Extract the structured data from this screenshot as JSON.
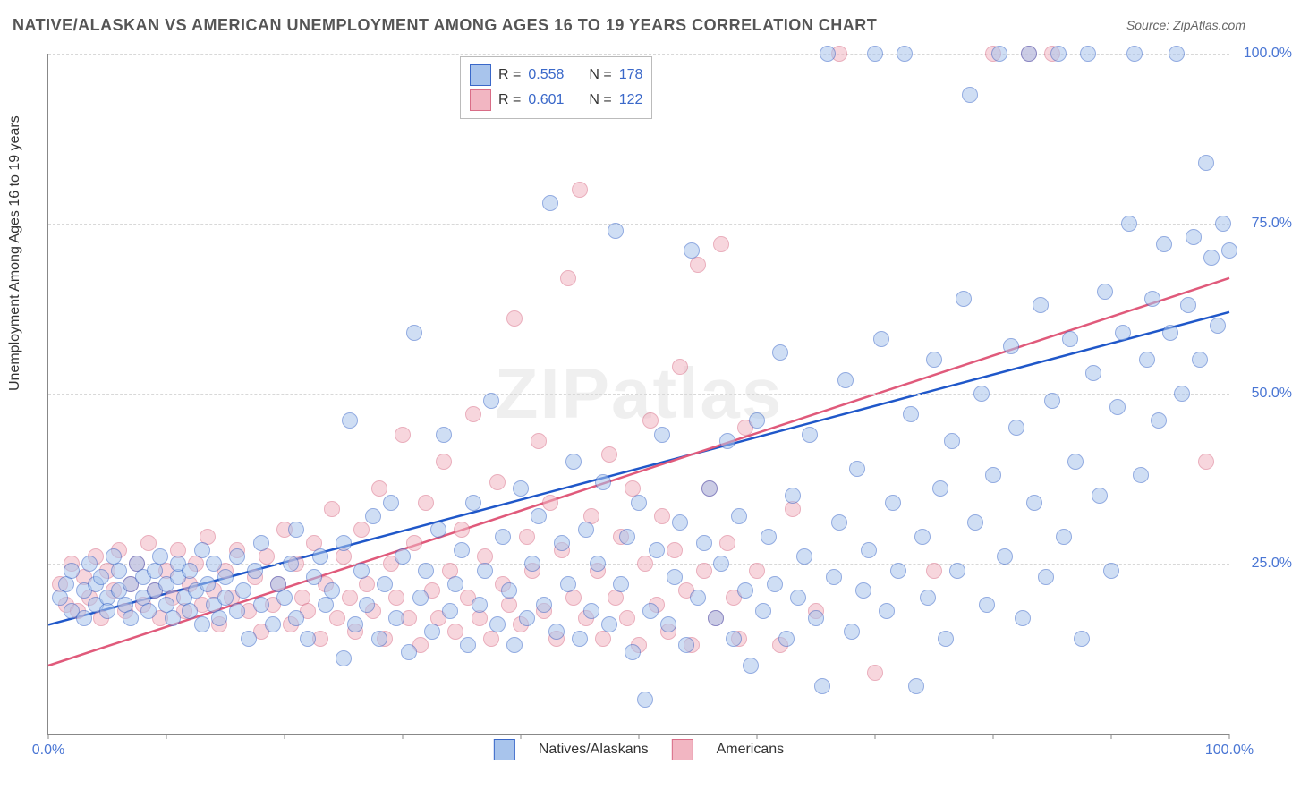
{
  "title": "NATIVE/ALASKAN VS AMERICAN UNEMPLOYMENT AMONG AGES 16 TO 19 YEARS CORRELATION CHART",
  "source": "Source: ZipAtlas.com",
  "watermark": "ZIPatlas",
  "ylabel": "Unemployment Among Ages 16 to 19 years",
  "chart": {
    "type": "scatter",
    "xlim": [
      0,
      100
    ],
    "ylim": [
      0,
      100
    ],
    "yticks": [
      25,
      50,
      75,
      100
    ],
    "xtick_marks": [
      0,
      10,
      20,
      30,
      40,
      50,
      60,
      70,
      80,
      90,
      100
    ],
    "xtick_labels": {
      "0": "0.0%",
      "100": "100.0%"
    },
    "ytick_labels": {
      "25": "25.0%",
      "50": "50.0%",
      "75": "75.0%",
      "100": "100.0%"
    },
    "grid_color": "#d8d8d8",
    "background_color": "#ffffff",
    "series": [
      {
        "key": "natives",
        "label": "Natives/Alaskans",
        "color_fill": "#a8c4ec",
        "color_stroke": "#3a68c9",
        "marker_radius": 8,
        "opacity": 0.55,
        "legend_r": "R = ",
        "legend_r_val": "0.558",
        "legend_n": "N = ",
        "legend_n_val": "178",
        "trend": {
          "x1": 0,
          "y1": 16,
          "x2": 100,
          "y2": 62,
          "color": "#1f57c9",
          "width": 2.5
        }
      },
      {
        "key": "americans",
        "label": "Americans",
        "color_fill": "#f2b6c2",
        "color_stroke": "#d96d87",
        "marker_radius": 8,
        "opacity": 0.55,
        "legend_r": "R = ",
        "legend_r_val": "0.601",
        "legend_n": "N = ",
        "legend_n_val": "122",
        "trend": {
          "x1": 0,
          "y1": 10,
          "x2": 100,
          "y2": 67,
          "color": "#e05a7b",
          "width": 2.5
        }
      }
    ],
    "points_blue": [
      [
        1,
        20
      ],
      [
        1.5,
        22
      ],
      [
        2,
        18
      ],
      [
        2,
        24
      ],
      [
        3,
        21
      ],
      [
        3,
        17
      ],
      [
        3.5,
        25
      ],
      [
        4,
        19
      ],
      [
        4,
        22
      ],
      [
        4.5,
        23
      ],
      [
        5,
        20
      ],
      [
        5,
        18
      ],
      [
        5.5,
        26
      ],
      [
        6,
        21
      ],
      [
        6,
        24
      ],
      [
        6.5,
        19
      ],
      [
        7,
        22
      ],
      [
        7,
        17
      ],
      [
        7.5,
        25
      ],
      [
        8,
        20
      ],
      [
        8,
        23
      ],
      [
        8.5,
        18
      ],
      [
        9,
        24
      ],
      [
        9,
        21
      ],
      [
        9.5,
        26
      ],
      [
        10,
        19
      ],
      [
        10,
        22
      ],
      [
        10.5,
        17
      ],
      [
        11,
        23
      ],
      [
        11,
        25
      ],
      [
        11.5,
        20
      ],
      [
        12,
        18
      ],
      [
        12,
        24
      ],
      [
        12.5,
        21
      ],
      [
        13,
        16
      ],
      [
        13,
        27
      ],
      [
        13.5,
        22
      ],
      [
        14,
        19
      ],
      [
        14,
        25
      ],
      [
        14.5,
        17
      ],
      [
        15,
        23
      ],
      [
        15,
        20
      ],
      [
        16,
        18
      ],
      [
        16,
        26
      ],
      [
        16.5,
        21
      ],
      [
        17,
        14
      ],
      [
        17.5,
        24
      ],
      [
        18,
        19
      ],
      [
        18,
        28
      ],
      [
        19,
        16
      ],
      [
        19.5,
        22
      ],
      [
        20,
        20
      ],
      [
        20.5,
        25
      ],
      [
        21,
        17
      ],
      [
        21,
        30
      ],
      [
        22,
        14
      ],
      [
        22.5,
        23
      ],
      [
        23,
        26
      ],
      [
        23.5,
        19
      ],
      [
        24,
        21
      ],
      [
        25,
        11
      ],
      [
        25,
        28
      ],
      [
        25.5,
        46
      ],
      [
        26,
        16
      ],
      [
        26.5,
        24
      ],
      [
        27,
        19
      ],
      [
        27.5,
        32
      ],
      [
        28,
        14
      ],
      [
        28.5,
        22
      ],
      [
        29,
        34
      ],
      [
        29.5,
        17
      ],
      [
        30,
        26
      ],
      [
        30.5,
        12
      ],
      [
        31,
        59
      ],
      [
        31.5,
        20
      ],
      [
        32,
        24
      ],
      [
        32.5,
        15
      ],
      [
        33,
        30
      ],
      [
        33.5,
        44
      ],
      [
        34,
        18
      ],
      [
        34.5,
        22
      ],
      [
        35,
        27
      ],
      [
        35.5,
        13
      ],
      [
        36,
        34
      ],
      [
        36.5,
        19
      ],
      [
        37,
        24
      ],
      [
        37.5,
        49
      ],
      [
        38,
        16
      ],
      [
        38.5,
        29
      ],
      [
        39,
        21
      ],
      [
        39.5,
        13
      ],
      [
        40,
        36
      ],
      [
        40.5,
        17
      ],
      [
        41,
        25
      ],
      [
        41.5,
        32
      ],
      [
        42,
        19
      ],
      [
        42.5,
        78
      ],
      [
        43,
        15
      ],
      [
        43.5,
        28
      ],
      [
        44,
        22
      ],
      [
        44.5,
        40
      ],
      [
        45,
        14
      ],
      [
        45.5,
        30
      ],
      [
        46,
        18
      ],
      [
        46.5,
        25
      ],
      [
        47,
        37
      ],
      [
        47.5,
        16
      ],
      [
        48,
        74
      ],
      [
        48.5,
        22
      ],
      [
        49,
        29
      ],
      [
        49.5,
        12
      ],
      [
        50,
        34
      ],
      [
        50.5,
        5
      ],
      [
        51,
        18
      ],
      [
        51.5,
        27
      ],
      [
        52,
        44
      ],
      [
        52.5,
        16
      ],
      [
        53,
        23
      ],
      [
        53.5,
        31
      ],
      [
        54,
        13
      ],
      [
        54.5,
        71
      ],
      [
        55,
        20
      ],
      [
        55.5,
        28
      ],
      [
        56,
        36
      ],
      [
        56.5,
        17
      ],
      [
        57,
        25
      ],
      [
        57.5,
        43
      ],
      [
        58,
        14
      ],
      [
        58.5,
        32
      ],
      [
        59,
        21
      ],
      [
        59.5,
        10
      ],
      [
        60,
        46
      ],
      [
        60.5,
        18
      ],
      [
        61,
        29
      ],
      [
        61.5,
        22
      ],
      [
        62,
        56
      ],
      [
        62.5,
        14
      ],
      [
        63,
        35
      ],
      [
        63.5,
        20
      ],
      [
        64,
        26
      ],
      [
        64.5,
        44
      ],
      [
        65,
        17
      ],
      [
        65.5,
        7
      ],
      [
        66,
        100
      ],
      [
        66.5,
        23
      ],
      [
        67,
        31
      ],
      [
        67.5,
        52
      ],
      [
        68,
        15
      ],
      [
        68.5,
        39
      ],
      [
        69,
        21
      ],
      [
        69.5,
        27
      ],
      [
        70,
        100
      ],
      [
        70.5,
        58
      ],
      [
        71,
        18
      ],
      [
        71.5,
        34
      ],
      [
        72,
        24
      ],
      [
        72.5,
        100
      ],
      [
        73,
        47
      ],
      [
        73.5,
        7
      ],
      [
        74,
        29
      ],
      [
        74.5,
        20
      ],
      [
        75,
        55
      ],
      [
        75.5,
        36
      ],
      [
        76,
        14
      ],
      [
        76.5,
        43
      ],
      [
        77,
        24
      ],
      [
        77.5,
        64
      ],
      [
        78,
        94
      ],
      [
        78.5,
        31
      ],
      [
        79,
        50
      ],
      [
        79.5,
        19
      ],
      [
        80,
        38
      ],
      [
        80.5,
        100
      ],
      [
        81,
        26
      ],
      [
        81.5,
        57
      ],
      [
        82,
        45
      ],
      [
        82.5,
        17
      ],
      [
        83,
        100
      ],
      [
        83.5,
        34
      ],
      [
        84,
        63
      ],
      [
        84.5,
        23
      ],
      [
        85,
        49
      ],
      [
        85.5,
        100
      ],
      [
        86,
        29
      ],
      [
        86.5,
        58
      ],
      [
        87,
        40
      ],
      [
        87.5,
        14
      ],
      [
        88,
        100
      ],
      [
        88.5,
        53
      ],
      [
        89,
        35
      ],
      [
        89.5,
        65
      ],
      [
        90,
        24
      ],
      [
        90.5,
        48
      ],
      [
        91,
        59
      ],
      [
        91.5,
        75
      ],
      [
        92,
        100
      ],
      [
        92.5,
        38
      ],
      [
        93,
        55
      ],
      [
        93.5,
        64
      ],
      [
        94,
        46
      ],
      [
        94.5,
        72
      ],
      [
        95,
        59
      ],
      [
        95.5,
        100
      ],
      [
        96,
        50
      ],
      [
        96.5,
        63
      ],
      [
        97,
        73
      ],
      [
        97.5,
        55
      ],
      [
        98,
        84
      ],
      [
        98.5,
        70
      ],
      [
        99,
        60
      ],
      [
        99.5,
        75
      ],
      [
        100,
        71
      ]
    ],
    "points_pink": [
      [
        1,
        22
      ],
      [
        1.5,
        19
      ],
      [
        2,
        25
      ],
      [
        2.5,
        18
      ],
      [
        3,
        23
      ],
      [
        3.5,
        20
      ],
      [
        4,
        26
      ],
      [
        4.5,
        17
      ],
      [
        5,
        24
      ],
      [
        5.5,
        21
      ],
      [
        6,
        27
      ],
      [
        6.5,
        18
      ],
      [
        7,
        22
      ],
      [
        7.5,
        25
      ],
      [
        8,
        19
      ],
      [
        8.5,
        28
      ],
      [
        9,
        21
      ],
      [
        9.5,
        17
      ],
      [
        10,
        24
      ],
      [
        10.5,
        20
      ],
      [
        11,
        27
      ],
      [
        11.5,
        18
      ],
      [
        12,
        22
      ],
      [
        12.5,
        25
      ],
      [
        13,
        19
      ],
      [
        13.5,
        29
      ],
      [
        14,
        21
      ],
      [
        14.5,
        16
      ],
      [
        15,
        24
      ],
      [
        15.5,
        20
      ],
      [
        16,
        27
      ],
      [
        17,
        18
      ],
      [
        17.5,
        23
      ],
      [
        18,
        15
      ],
      [
        18.5,
        26
      ],
      [
        19,
        19
      ],
      [
        19.5,
        22
      ],
      [
        20,
        30
      ],
      [
        20.5,
        16
      ],
      [
        21,
        25
      ],
      [
        21.5,
        20
      ],
      [
        22,
        18
      ],
      [
        22.5,
        28
      ],
      [
        23,
        14
      ],
      [
        23.5,
        22
      ],
      [
        24,
        33
      ],
      [
        24.5,
        17
      ],
      [
        25,
        26
      ],
      [
        25.5,
        20
      ],
      [
        26,
        15
      ],
      [
        26.5,
        30
      ],
      [
        27,
        22
      ],
      [
        27.5,
        18
      ],
      [
        28,
        36
      ],
      [
        28.5,
        14
      ],
      [
        29,
        25
      ],
      [
        29.5,
        20
      ],
      [
        30,
        44
      ],
      [
        30.5,
        17
      ],
      [
        31,
        28
      ],
      [
        31.5,
        13
      ],
      [
        32,
        34
      ],
      [
        32.5,
        21
      ],
      [
        33,
        17
      ],
      [
        33.5,
        40
      ],
      [
        34,
        24
      ],
      [
        34.5,
        15
      ],
      [
        35,
        30
      ],
      [
        35.5,
        20
      ],
      [
        36,
        47
      ],
      [
        36.5,
        17
      ],
      [
        37,
        26
      ],
      [
        37.5,
        14
      ],
      [
        38,
        37
      ],
      [
        38.5,
        22
      ],
      [
        39,
        19
      ],
      [
        39.5,
        61
      ],
      [
        40,
        16
      ],
      [
        40.5,
        29
      ],
      [
        41,
        24
      ],
      [
        41.5,
        43
      ],
      [
        42,
        18
      ],
      [
        42.5,
        34
      ],
      [
        43,
        14
      ],
      [
        43.5,
        27
      ],
      [
        44,
        67
      ],
      [
        44.5,
        20
      ],
      [
        45,
        80
      ],
      [
        45.5,
        17
      ],
      [
        46,
        32
      ],
      [
        46.5,
        24
      ],
      [
        47,
        14
      ],
      [
        47.5,
        41
      ],
      [
        48,
        20
      ],
      [
        48.5,
        29
      ],
      [
        49,
        17
      ],
      [
        49.5,
        36
      ],
      [
        50,
        13
      ],
      [
        50.5,
        25
      ],
      [
        51,
        46
      ],
      [
        51.5,
        19
      ],
      [
        52,
        32
      ],
      [
        52.5,
        15
      ],
      [
        53,
        27
      ],
      [
        53.5,
        54
      ],
      [
        54,
        21
      ],
      [
        54.5,
        13
      ],
      [
        55,
        69
      ],
      [
        55.5,
        24
      ],
      [
        56,
        36
      ],
      [
        56.5,
        17
      ],
      [
        57,
        72
      ],
      [
        57.5,
        28
      ],
      [
        58,
        20
      ],
      [
        58.5,
        14
      ],
      [
        59,
        45
      ],
      [
        60,
        24
      ],
      [
        62,
        13
      ],
      [
        63,
        33
      ],
      [
        65,
        18
      ],
      [
        67,
        100
      ],
      [
        70,
        9
      ],
      [
        75,
        24
      ],
      [
        80,
        100
      ],
      [
        83,
        100
      ],
      [
        85,
        100
      ],
      [
        98,
        40
      ]
    ]
  }
}
